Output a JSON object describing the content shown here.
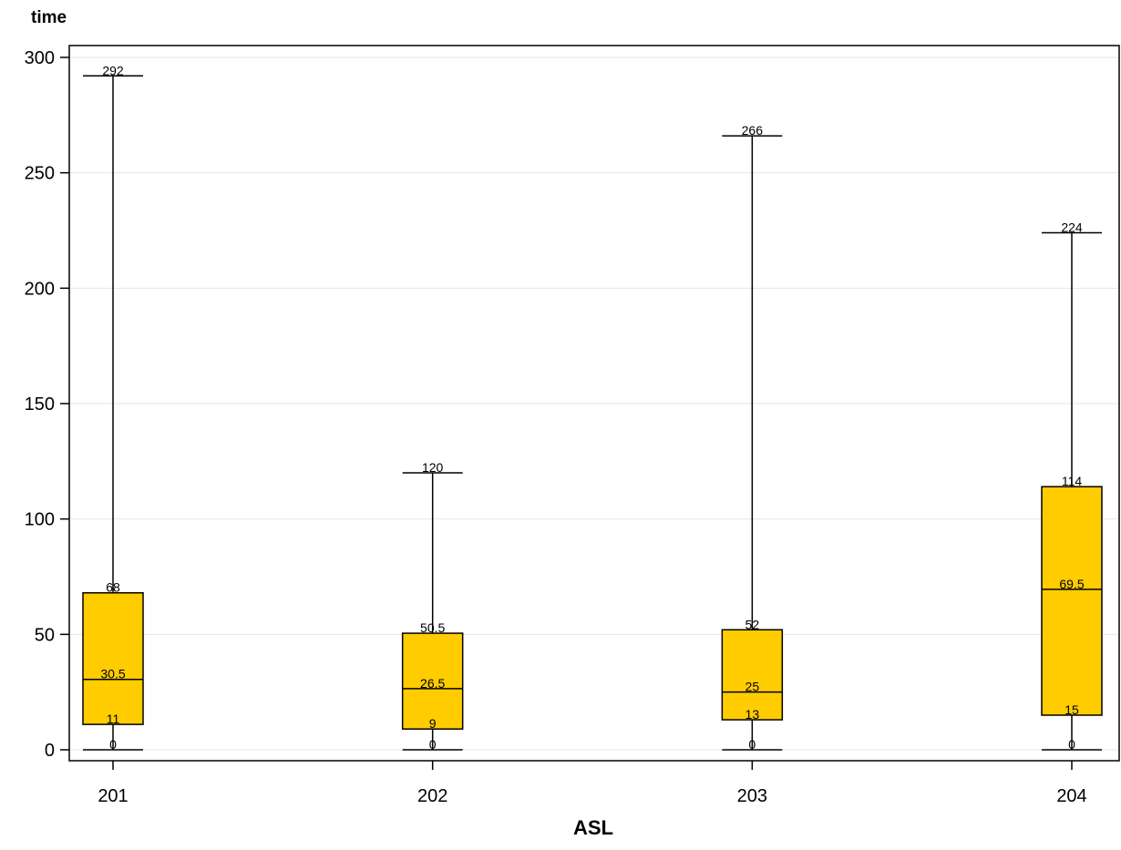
{
  "chart_data": {
    "type": "boxplot",
    "title": "",
    "xlabel": "ASL",
    "ylabel": "time",
    "ylim": [
      -5,
      305
    ],
    "yticks": [
      0,
      50,
      100,
      150,
      200,
      250,
      300
    ],
    "grid": true,
    "box_color": "#ffcc00",
    "categories": [
      "201",
      "202",
      "203",
      "204"
    ],
    "boxes": [
      {
        "category": "201",
        "min": 0,
        "q1": 11,
        "median": 30.5,
        "q3": 68,
        "max": 292,
        "labels": {
          "min": "0",
          "q1": "11",
          "median": "30.5",
          "q3": "68",
          "max": "292"
        }
      },
      {
        "category": "202",
        "min": 0,
        "q1": 9,
        "median": 26.5,
        "q3": 50.5,
        "max": 120,
        "labels": {
          "min": "0",
          "q1": "9",
          "median": "26.5",
          "q3": "50.5",
          "max": "120"
        }
      },
      {
        "category": "203",
        "min": 0,
        "q1": 13,
        "median": 25,
        "q3": 52,
        "max": 266,
        "labels": {
          "min": "0",
          "q1": "13",
          "median": "25",
          "q3": "52",
          "max": "266"
        }
      },
      {
        "category": "204",
        "min": 0,
        "q1": 15,
        "median": 69.5,
        "q3": 114,
        "max": 224,
        "labels": {
          "min": "0",
          "q1": "15",
          "median": "69.5",
          "q3": "114",
          "max": "224"
        }
      }
    ]
  }
}
